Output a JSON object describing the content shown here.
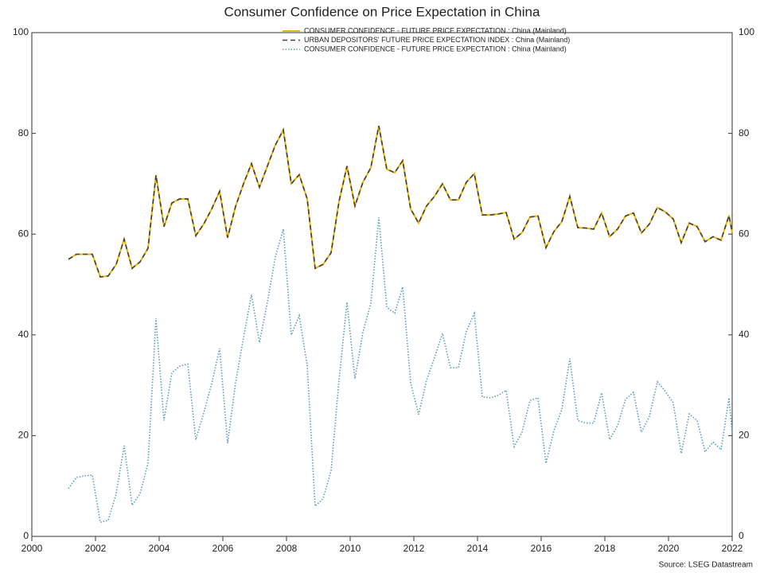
{
  "chart_data": {
    "type": "line",
    "title": "Consumer Confidence on Price Expectation in China",
    "source": "Source: LSEG Datastream",
    "legend": "upper center",
    "x": [
      2001.15,
      2001.4,
      2001.65,
      2001.9,
      2002.15,
      2002.4,
      2002.65,
      2002.9,
      2003.15,
      2003.4,
      2003.65,
      2003.9,
      2004.15,
      2004.4,
      2004.65,
      2004.9,
      2005.15,
      2005.4,
      2005.65,
      2005.9,
      2006.15,
      2006.4,
      2006.65,
      2006.9,
      2007.15,
      2007.4,
      2007.65,
      2007.9,
      2008.15,
      2008.4,
      2008.65,
      2008.9,
      2009.15,
      2009.4,
      2009.65,
      2009.9,
      2010.15,
      2010.4,
      2010.65,
      2010.9,
      2011.15,
      2011.4,
      2011.65,
      2011.9,
      2012.15,
      2012.4,
      2012.65,
      2012.9,
      2013.15,
      2013.4,
      2013.65,
      2013.9,
      2014.15,
      2014.4,
      2014.65,
      2014.9,
      2015.15,
      2015.4,
      2015.65,
      2015.9,
      2016.15,
      2016.4,
      2016.65,
      2016.9,
      2017.15,
      2017.4,
      2017.65,
      2017.9,
      2018.15,
      2018.4,
      2018.65,
      2018.9,
      2019.15,
      2019.4,
      2019.65,
      2019.9,
      2020.15,
      2020.4,
      2020.65,
      2020.9,
      2021.15,
      2021.4,
      2021.65,
      2021.9,
      2022.0
    ],
    "series": [
      {
        "name": "CONSUMER CONFIDENCE - FUTURE PRICE EXPECTATION : China (Mainland)",
        "color": "#f0b400",
        "style": "solid",
        "values": [
          55,
          56,
          56,
          56,
          51.5,
          51.7,
          54,
          59,
          53.2,
          54.5,
          57.2,
          71.7,
          61.5,
          66.2,
          67,
          67,
          59.7,
          62,
          65,
          68.5,
          59.3,
          65.5,
          70,
          74,
          69.3,
          73.5,
          77.7,
          80.7,
          70,
          71.8,
          67,
          53.2,
          54,
          56.3,
          66.5,
          73.5,
          65.6,
          70.3,
          73.2,
          81.5,
          72.9,
          72.2,
          74.6,
          65,
          62.2,
          65.6,
          67.5,
          70,
          66.8,
          66.8,
          70.3,
          72,
          63.8,
          63.8,
          64,
          64.3,
          59,
          60.3,
          63.4,
          63.6,
          57.3,
          60.5,
          62.5,
          67.5,
          61.3,
          61.2,
          61,
          64.2,
          59.5,
          61,
          63.6,
          64.2,
          60.2,
          62,
          65.3,
          64.4,
          63,
          58.3,
          62.2,
          61.5,
          58.5,
          59.5,
          58.8,
          63.7,
          60.3
        ]
      },
      {
        "name": "URBAN DEPOSITORS' FUTURE PRICE EXPECTATION INDEX : China (Mainland)",
        "color": "#404040",
        "style": "dashed",
        "values": [
          55,
          56,
          56,
          56,
          51.5,
          51.7,
          54,
          59,
          53.2,
          54.5,
          57.2,
          71.7,
          61.5,
          66.2,
          67,
          67,
          59.7,
          62,
          65,
          68.5,
          59.3,
          65.5,
          70,
          74,
          69.3,
          73.5,
          77.7,
          80.7,
          70,
          71.8,
          67,
          53.2,
          54,
          56.3,
          66.5,
          73.5,
          65.6,
          70.3,
          73.2,
          81.5,
          72.9,
          72.2,
          74.6,
          65,
          62.2,
          65.6,
          67.5,
          70,
          66.8,
          66.8,
          70.3,
          72,
          63.8,
          63.8,
          64,
          64.3,
          59,
          60.3,
          63.4,
          63.6,
          57.3,
          60.5,
          62.5,
          67.5,
          61.3,
          61.2,
          61,
          64.2,
          59.5,
          61,
          63.6,
          64.2,
          60.2,
          62,
          65.3,
          64.4,
          63,
          58.3,
          62.2,
          61.5,
          58.5,
          59.5,
          58.8,
          63.7,
          60.3
        ]
      },
      {
        "name": "CONSUMER CONFIDENCE - FUTURE PRICE EXPECTATION : China (Mainland)",
        "color": "#5b9bc0",
        "style": "dotted",
        "values": [
          9.5,
          11.7,
          12,
          12.2,
          2.8,
          3.2,
          8.5,
          18,
          6.2,
          8.5,
          14.5,
          43.3,
          23,
          32.5,
          33.8,
          34.2,
          19.2,
          24.5,
          30.3,
          37.3,
          18.5,
          30.5,
          39.5,
          48,
          38.5,
          46.5,
          55.5,
          61,
          40,
          43.8,
          34,
          6,
          7.5,
          13,
          31,
          46.5,
          31.3,
          40.5,
          46.3,
          63.3,
          45.5,
          44.3,
          49.5,
          30.5,
          24.2,
          31,
          35.5,
          40.3,
          33.5,
          33.5,
          40.7,
          44.3,
          27.7,
          27.5,
          28,
          29,
          17.8,
          20.7,
          27,
          27.5,
          14.5,
          21,
          25.2,
          35.3,
          23,
          22.5,
          22.5,
          28.5,
          19.2,
          22,
          27.2,
          28.6,
          20.7,
          23.8,
          30.7,
          28.8,
          26.5,
          16.5,
          24.3,
          23,
          16.8,
          18.7,
          17.2,
          27.5,
          20.5
        ]
      }
    ],
    "xlim": [
      2000,
      2022
    ],
    "xticks": [
      2000,
      2002,
      2004,
      2006,
      2008,
      2010,
      2012,
      2014,
      2016,
      2018,
      2020,
      2022
    ],
    "ylim": [
      0,
      100
    ],
    "yticks": [
      0,
      20,
      40,
      60,
      80,
      100
    ],
    "y2lim": [
      0,
      100
    ],
    "y2ticks": [
      0,
      20,
      40,
      60,
      80,
      100
    ]
  }
}
